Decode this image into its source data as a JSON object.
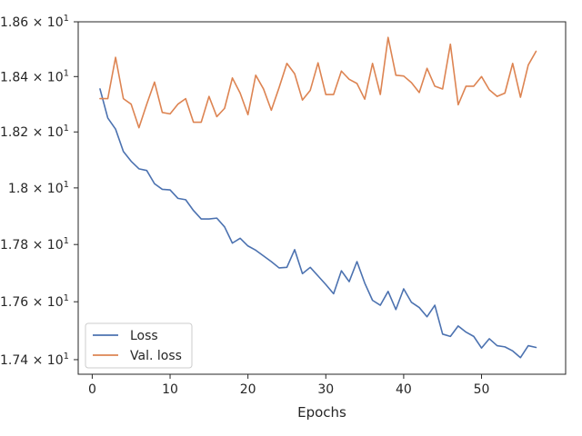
{
  "chart_data": {
    "type": "line",
    "title": "",
    "xlabel": "Epochs",
    "ylabel": "",
    "xlim": [
      -1.8,
      60.8
    ],
    "ylim": [
      17.35,
      18.6
    ],
    "x_ticks": [
      0,
      10,
      20,
      30,
      40,
      50
    ],
    "y_ticks": [
      {
        "value": 17.4,
        "mantissa": "1.74",
        "exp": "1"
      },
      {
        "value": 17.6,
        "mantissa": "1.76",
        "exp": "1"
      },
      {
        "value": 17.8,
        "mantissa": "1.78",
        "exp": "1"
      },
      {
        "value": 18.0,
        "mantissa": "1.8",
        "exp": "1"
      },
      {
        "value": 18.2,
        "mantissa": "1.82",
        "exp": "1"
      },
      {
        "value": 18.4,
        "mantissa": "1.84",
        "exp": "1"
      },
      {
        "value": 18.6,
        "mantissa": "1.86",
        "exp": "1"
      }
    ],
    "y_scale": "log",
    "grid": false,
    "legend_position": "lower-left",
    "x": [
      1,
      2,
      3,
      4,
      5,
      6,
      7,
      8,
      9,
      10,
      11,
      12,
      13,
      14,
      15,
      16,
      17,
      18,
      19,
      20,
      21,
      22,
      23,
      24,
      25,
      26,
      27,
      28,
      29,
      30,
      31,
      32,
      33,
      34,
      35,
      36,
      37,
      38,
      39,
      40,
      41,
      42,
      43,
      44,
      45,
      46,
      47,
      48,
      49,
      50,
      51,
      52,
      53,
      54,
      55,
      56,
      57
    ],
    "series": [
      {
        "name": "Loss",
        "color": "#4c72b0",
        "values": [
          18.355,
          18.25,
          18.21,
          18.13,
          18.095,
          18.068,
          18.062,
          18.015,
          17.995,
          17.993,
          17.963,
          17.958,
          17.92,
          17.89,
          17.89,
          17.893,
          17.862,
          17.805,
          17.822,
          17.795,
          17.78,
          17.76,
          17.74,
          17.718,
          17.72,
          17.782,
          17.698,
          17.72,
          17.69,
          17.66,
          17.628,
          17.708,
          17.67,
          17.74,
          17.665,
          17.605,
          17.588,
          17.636,
          17.573,
          17.645,
          17.598,
          17.58,
          17.548,
          17.588,
          17.488,
          17.48,
          17.516,
          17.495,
          17.48,
          17.44,
          17.472,
          17.448,
          17.444,
          17.43,
          17.407,
          17.448,
          17.442
        ]
      },
      {
        "name": "Val. loss",
        "color": "#dd8452",
        "values": [
          18.32,
          18.32,
          18.47,
          18.32,
          18.3,
          18.215,
          18.3,
          18.38,
          18.27,
          18.265,
          18.3,
          18.32,
          18.235,
          18.235,
          18.328,
          18.255,
          18.285,
          18.395,
          18.34,
          18.262,
          18.405,
          18.355,
          18.278,
          18.36,
          18.448,
          18.41,
          18.315,
          18.35,
          18.45,
          18.335,
          18.335,
          18.42,
          18.39,
          18.375,
          18.318,
          18.448,
          18.335,
          18.543,
          18.405,
          18.402,
          18.378,
          18.342,
          18.43,
          18.365,
          18.355,
          18.518,
          18.298,
          18.365,
          18.365,
          18.4,
          18.352,
          18.328,
          18.34,
          18.448,
          18.325,
          18.442,
          18.492
        ]
      }
    ]
  }
}
